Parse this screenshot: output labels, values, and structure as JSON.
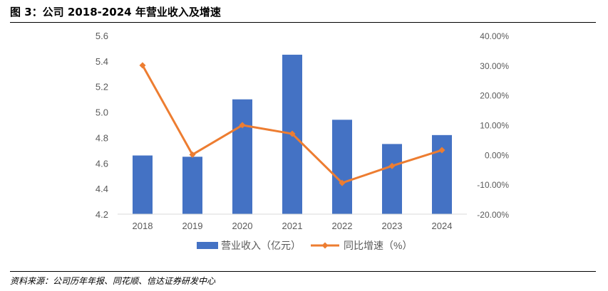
{
  "header": {
    "title": "图 3：公司 2018-2024 年营业收入及增速"
  },
  "footer": {
    "source": "资料来源：公司历年年报、同花顺、信达证券研发中心"
  },
  "chart_data": {
    "type": "bar+line",
    "categories": [
      "2018",
      "2019",
      "2020",
      "2021",
      "2022",
      "2023",
      "2024"
    ],
    "series": [
      {
        "name": "营业收入（亿元）",
        "type": "bar",
        "axis": "left",
        "values": [
          4.66,
          4.65,
          5.1,
          5.45,
          4.94,
          4.75,
          4.82
        ]
      },
      {
        "name": "同比增速（%）",
        "type": "line",
        "axis": "right",
        "values": [
          30.0,
          0.0,
          9.9,
          7.0,
          -9.5,
          -3.8,
          1.5
        ]
      }
    ],
    "y_left": {
      "min": 4.2,
      "max": 5.6,
      "step": 0.2,
      "tick_labels": [
        "4.2",
        "4.4",
        "4.6",
        "4.8",
        "5.0",
        "5.2",
        "5.4",
        "5.6"
      ]
    },
    "y_right": {
      "min": -20,
      "max": 40,
      "step": 10,
      "tick_labels": [
        "-20.00%",
        "-10.00%",
        "0.00%",
        "10.00%",
        "20.00%",
        "30.00%",
        "40.00%"
      ]
    },
    "legend": {
      "position": "bottom"
    },
    "colors": {
      "bar": "#4472C4",
      "line": "#ED7D31",
      "axis": "#D9D9D9",
      "tick_text": "#595959"
    }
  }
}
